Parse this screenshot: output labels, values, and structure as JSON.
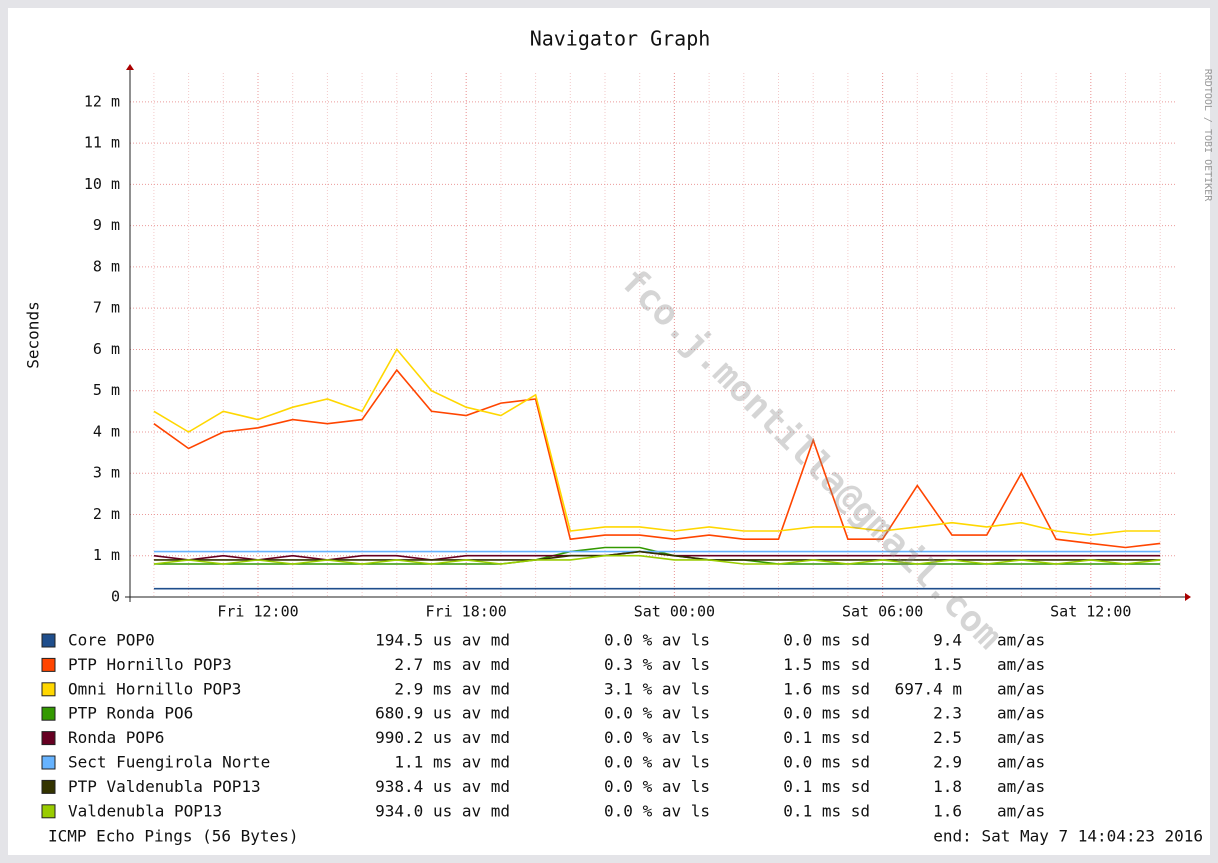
{
  "chart_data": {
    "type": "line",
    "title": "Navigator Graph",
    "y_label": "Seconds",
    "side_text": "RRDTOOL / TOBI OETIKER",
    "watermark": "fco.j.montilla@gmail.com",
    "footer_left": "ICMP Echo Pings (56 Bytes)",
    "footer_right": "end: Sat May  7 14:04:23 2016",
    "grid": true,
    "categories": [
      "Fri 09:00",
      "Fri 10:00",
      "Fri 11:00",
      "Fri 12:00",
      "Fri 13:00",
      "Fri 14:00",
      "Fri 15:00",
      "Fri 16:00",
      "Fri 17:00",
      "Fri 18:00",
      "Fri 19:00",
      "Fri 20:00",
      "Fri 21:00",
      "Fri 22:00",
      "Fri 23:00",
      "Sat 00:00",
      "Sat 01:00",
      "Sat 02:00",
      "Sat 03:00",
      "Sat 04:00",
      "Sat 05:00",
      "Sat 06:00",
      "Sat 07:00",
      "Sat 08:00",
      "Sat 09:00",
      "Sat 10:00",
      "Sat 11:00",
      "Sat 12:00",
      "Sat 13:00",
      "Sat 14:00"
    ],
    "xticks": [
      "Fri 12:00",
      "Fri 18:00",
      "Sat 00:00",
      "Sat 06:00",
      "Sat 12:00"
    ],
    "ylim": [
      0,
      0.0127
    ],
    "yticks": [
      0,
      {
        "value": 0.001,
        "label": "1 m"
      },
      {
        "value": 0.002,
        "label": "2 m"
      },
      {
        "value": 0.003,
        "label": "3 m"
      },
      {
        "value": 0.004,
        "label": "4 m"
      },
      {
        "value": 0.005,
        "label": "5 m"
      },
      {
        "value": 0.006,
        "label": "6 m"
      },
      {
        "value": 0.007,
        "label": "7 m"
      },
      {
        "value": 0.008,
        "label": "8 m"
      },
      {
        "value": 0.009,
        "label": "9 m"
      },
      {
        "value": 0.01,
        "label": "10 m"
      },
      {
        "value": 0.011,
        "label": "11 m"
      },
      {
        "value": 0.012,
        "label": "12 m"
      }
    ],
    "series": [
      {
        "name": "Core POP0",
        "color": "#1f4e8c",
        "stats": [
          "194.5 us av md",
          "0.0 % av ls",
          "0.0 ms sd",
          "9.4",
          "am/as"
        ],
        "values": [
          0.0002,
          0.0002,
          0.0002,
          0.0002,
          0.0002,
          0.0002,
          0.0002,
          0.0002,
          0.0002,
          0.0002,
          0.0002,
          0.0002,
          0.0002,
          0.0002,
          0.0002,
          0.0002,
          0.0002,
          0.0002,
          0.0002,
          0.0002,
          0.0002,
          0.0002,
          0.0002,
          0.0002,
          0.0002,
          0.0002,
          0.0002,
          0.0002,
          0.0002,
          0.0002
        ]
      },
      {
        "name": "PTP Hornillo POP3",
        "color": "#ff4500",
        "stats": [
          "2.7 ms av md",
          "0.3 % av ls",
          "1.5 ms sd",
          "1.5",
          "am/as"
        ],
        "values": [
          0.0042,
          0.0036,
          0.004,
          0.0041,
          0.0043,
          0.0042,
          0.0043,
          0.0055,
          0.0045,
          0.0044,
          0.0047,
          0.0048,
          0.0014,
          0.0015,
          0.0015,
          0.0014,
          0.0015,
          0.0014,
          0.0014,
          0.0038,
          0.0014,
          0.0014,
          0.0027,
          0.0015,
          0.0015,
          0.003,
          0.0014,
          0.0013,
          0.0012,
          0.0013
        ]
      },
      {
        "name": "Omni Hornillo POP3",
        "color": "#ffd700",
        "stats": [
          "2.9 ms av md",
          "3.1 % av ls",
          "1.6 ms sd",
          "697.4 m",
          "am/as"
        ],
        "values": [
          0.0045,
          0.004,
          0.0045,
          0.0043,
          0.0046,
          0.0048,
          0.0045,
          0.006,
          0.005,
          0.0046,
          0.0044,
          0.0049,
          0.0016,
          0.0017,
          0.0017,
          0.0016,
          0.0017,
          0.0016,
          0.0016,
          0.0017,
          0.0017,
          0.0016,
          0.0017,
          0.0018,
          0.0017,
          0.0018,
          0.0016,
          0.0015,
          0.0016,
          0.0016
        ]
      },
      {
        "name": "PTP Ronda PO6",
        "color": "#339900",
        "stats": [
          "680.9 us av md",
          "0.0 % av ls",
          "0.0 ms sd",
          "2.3",
          "am/as"
        ],
        "values": [
          0.0008,
          0.0008,
          0.0008,
          0.0008,
          0.0008,
          0.0008,
          0.0008,
          0.0008,
          0.0008,
          0.0008,
          0.0008,
          0.0009,
          0.0011,
          0.0012,
          0.0012,
          0.001,
          0.0009,
          0.0009,
          0.0008,
          0.0008,
          0.0008,
          0.0008,
          0.0008,
          0.0008,
          0.0008,
          0.0008,
          0.0008,
          0.0008,
          0.0008,
          0.0008
        ]
      },
      {
        "name": "Ronda POP6",
        "color": "#660022",
        "stats": [
          "990.2 us av md",
          "0.0 % av ls",
          "0.1 ms sd",
          "2.5",
          "am/as"
        ],
        "values": [
          0.001,
          0.0009,
          0.001,
          0.0009,
          0.001,
          0.0009,
          0.001,
          0.001,
          0.0009,
          0.001,
          0.001,
          0.001,
          0.001,
          0.001,
          0.0011,
          0.001,
          0.001,
          0.001,
          0.001,
          0.001,
          0.001,
          0.001,
          0.001,
          0.001,
          0.001,
          0.001,
          0.001,
          0.001,
          0.001,
          0.001
        ]
      },
      {
        "name": "Sect Fuengirola Norte",
        "color": "#66b3ff",
        "stats": [
          "1.1 ms av md",
          "0.0 % av ls",
          "0.0 ms sd",
          "2.9",
          "am/as"
        ],
        "values": [
          0.0011,
          0.0011,
          0.0011,
          0.0011,
          0.0011,
          0.0011,
          0.0011,
          0.0011,
          0.0011,
          0.0011,
          0.0011,
          0.0011,
          0.0011,
          0.0011,
          0.0011,
          0.0011,
          0.0011,
          0.0011,
          0.0011,
          0.0011,
          0.0011,
          0.0011,
          0.0011,
          0.0011,
          0.0011,
          0.0011,
          0.0011,
          0.0011,
          0.0011,
          0.0011
        ]
      },
      {
        "name": "PTP Valdenubla POP13",
        "color": "#333300",
        "stats": [
          "938.4 us av md",
          "0.0 % av ls",
          "0.1 ms sd",
          "1.8",
          "am/as"
        ],
        "values": [
          0.0009,
          0.0009,
          0.0009,
          0.0009,
          0.0009,
          0.0009,
          0.0009,
          0.0009,
          0.0009,
          0.0009,
          0.0009,
          0.0009,
          0.001,
          0.001,
          0.0011,
          0.001,
          0.0009,
          0.0009,
          0.0009,
          0.0009,
          0.0009,
          0.0009,
          0.0009,
          0.0009,
          0.0009,
          0.0009,
          0.0009,
          0.0009,
          0.0009,
          0.0009
        ]
      },
      {
        "name": "Valdenubla POP13",
        "color": "#99cc00",
        "stats": [
          "934.0 us av md",
          "0.0 % av ls",
          "0.1 ms sd",
          "1.6",
          "am/as"
        ],
        "values": [
          0.0008,
          0.0009,
          0.0008,
          0.0009,
          0.0008,
          0.0009,
          0.0008,
          0.0009,
          0.0008,
          0.0009,
          0.0008,
          0.0009,
          0.0009,
          0.001,
          0.001,
          0.0009,
          0.0009,
          0.0008,
          0.0008,
          0.0009,
          0.0008,
          0.0009,
          0.0008,
          0.0009,
          0.0008,
          0.0009,
          0.0008,
          0.0009,
          0.0008,
          0.0009
        ]
      }
    ]
  }
}
